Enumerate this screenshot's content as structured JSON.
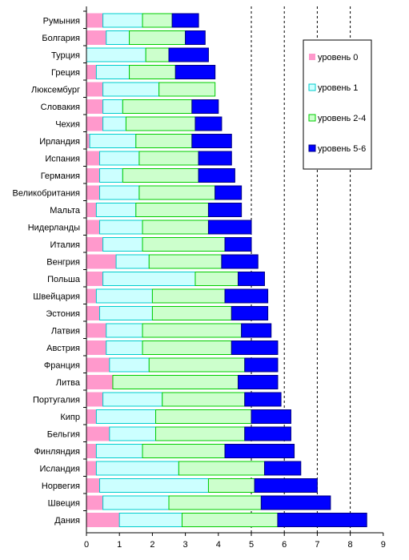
{
  "chart_data": {
    "type": "bar",
    "orientation": "horizontal",
    "stacked": true,
    "title": "",
    "xlabel": "",
    "ylabel": "",
    "xlim": [
      0,
      9
    ],
    "xticks": [
      "0",
      "1",
      "2",
      "3",
      "4",
      "5",
      "6",
      "7",
      "8",
      "9"
    ],
    "grid": "dashed vertical lines at x = 5–8",
    "legend_position": "right",
    "categories": [
      "Румыния",
      "Болгария",
      "Турция",
      "Греция",
      "Люксембург",
      "Словакия",
      "Чехия",
      "Ирландия",
      "Испания",
      "Германия",
      "Великобритания",
      "Мальта",
      "Нидерланды",
      "Италия",
      "Венгрия",
      "Польша",
      "Швейцария",
      "Эстония",
      "Латвия",
      "Австрия",
      "Франция",
      "Литва",
      "Португалия",
      "Кипр",
      "Бельгия",
      "Финляндия",
      "Исландия",
      "Норвегия",
      "Швеция",
      "Дания"
    ],
    "series": [
      {
        "name": "уровень 0",
        "color": "#ff99cc",
        "values": [
          0.5,
          0.6,
          0.0,
          0.3,
          0.5,
          0.5,
          0.5,
          0.1,
          0.4,
          0.4,
          0.4,
          0.3,
          0.4,
          0.5,
          0.9,
          0.5,
          0.3,
          0.4,
          0.6,
          0.6,
          0.7,
          0.8,
          0.5,
          0.3,
          0.7,
          0.3,
          0.3,
          0.4,
          0.5,
          1.0
        ]
      },
      {
        "name": "уровень 1",
        "color": "#ccffff",
        "values": [
          1.2,
          0.7,
          1.8,
          1.0,
          1.7,
          0.6,
          0.7,
          1.4,
          1.2,
          0.7,
          1.2,
          1.2,
          1.3,
          1.2,
          1.0,
          2.8,
          1.7,
          1.6,
          1.1,
          1.1,
          1.2,
          0.0,
          1.8,
          1.8,
          1.4,
          1.4,
          2.5,
          3.3,
          2.0,
          1.9
        ]
      },
      {
        "name": "уровень 2-4",
        "color": "#ccffcc",
        "values": [
          0.9,
          1.7,
          0.7,
          1.4,
          1.7,
          2.1,
          2.1,
          1.7,
          1.8,
          2.3,
          2.3,
          2.2,
          2.0,
          2.5,
          2.2,
          1.3,
          2.2,
          2.4,
          3.0,
          2.7,
          2.9,
          3.8,
          2.5,
          2.9,
          2.7,
          2.5,
          2.6,
          1.4,
          2.8,
          2.9
        ]
      },
      {
        "name": "уровень 5-6",
        "color": "#0000ff",
        "values": [
          0.8,
          0.6,
          1.2,
          1.2,
          0.0,
          0.8,
          0.8,
          1.2,
          1.0,
          1.1,
          0.8,
          1.0,
          1.3,
          0.8,
          1.1,
          0.8,
          1.3,
          1.1,
          0.9,
          1.4,
          1.0,
          1.2,
          1.1,
          1.2,
          1.4,
          2.1,
          1.1,
          1.9,
          2.1,
          2.7
        ]
      }
    ]
  }
}
